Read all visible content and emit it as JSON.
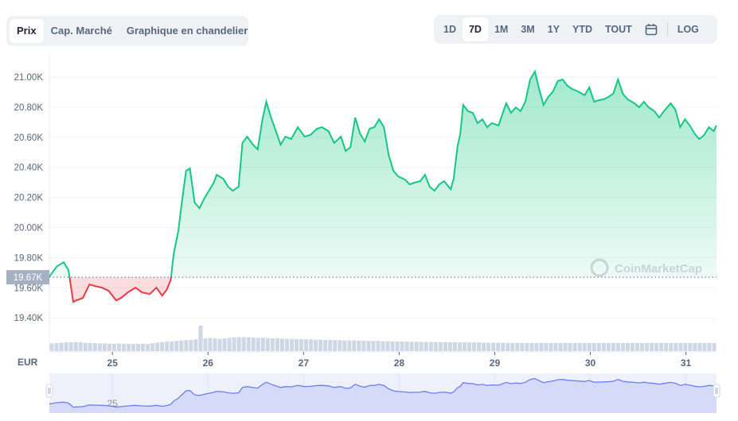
{
  "chart_tabs": [
    {
      "label": "Prix",
      "active": true
    },
    {
      "label": "Cap. Marché",
      "active": false
    },
    {
      "label": "Graphique en chandelier",
      "active": false
    }
  ],
  "range_tabs": [
    {
      "label": "1D",
      "active": false
    },
    {
      "label": "7D",
      "active": true
    },
    {
      "label": "1M",
      "active": false
    },
    {
      "label": "3M",
      "active": false
    },
    {
      "label": "1Y",
      "active": false
    },
    {
      "label": "YTD",
      "active": false
    },
    {
      "label": "TOUT",
      "active": false
    }
  ],
  "calendar_icon": "calendar-icon",
  "log_label": "LOG",
  "watermark": "CoinMarketCap",
  "colors": {
    "up": "#16c784",
    "down": "#ea3943",
    "nav": "#6a7ff0"
  },
  "chart_data": {
    "type": "line",
    "currency_label": "EUR",
    "baseline": 19670,
    "baseline_label": "19.67K",
    "ylim": [
      19250,
      21100
    ],
    "yticks": [
      {
        "v": 19400,
        "label": "19.40K"
      },
      {
        "v": 19600,
        "label": "19.60K"
      },
      {
        "v": 19800,
        "label": "19.80K"
      },
      {
        "v": 20000,
        "label": "20.00K"
      },
      {
        "v": 20200,
        "label": "20.20K"
      },
      {
        "v": 20400,
        "label": "20.40K"
      },
      {
        "v": 20600,
        "label": "20.60K"
      },
      {
        "v": 20800,
        "label": "20.80K"
      },
      {
        "v": 21000,
        "label": "21.00K"
      }
    ],
    "xlim": [
      24.34,
      31.32
    ],
    "xticks": [
      {
        "v": 25,
        "label": "25"
      },
      {
        "v": 26,
        "label": "26"
      },
      {
        "v": 27,
        "label": "27"
      },
      {
        "v": 28,
        "label": "28"
      },
      {
        "v": 29,
        "label": "29"
      },
      {
        "v": 30,
        "label": "30"
      },
      {
        "v": 31,
        "label": "31"
      }
    ],
    "points": [
      [
        24.34,
        19675
      ],
      [
        24.42,
        19743
      ],
      [
        24.49,
        19770
      ],
      [
        24.54,
        19717
      ],
      [
        24.59,
        19506
      ],
      [
        24.62,
        19516
      ],
      [
        24.69,
        19532
      ],
      [
        24.76,
        19622
      ],
      [
        24.82,
        19611
      ],
      [
        24.89,
        19601
      ],
      [
        24.96,
        19580
      ],
      [
        25.04,
        19516
      ],
      [
        25.09,
        19532
      ],
      [
        25.16,
        19569
      ],
      [
        25.24,
        19601
      ],
      [
        25.31,
        19569
      ],
      [
        25.39,
        19559
      ],
      [
        25.46,
        19601
      ],
      [
        25.52,
        19548
      ],
      [
        25.57,
        19590
      ],
      [
        25.61,
        19654
      ],
      [
        25.64,
        19823
      ],
      [
        25.69,
        19981
      ],
      [
        25.72,
        20139
      ],
      [
        25.77,
        20377
      ],
      [
        25.81,
        20393
      ],
      [
        25.86,
        20166
      ],
      [
        25.91,
        20129
      ],
      [
        25.96,
        20192
      ],
      [
        26.01,
        20245
      ],
      [
        26.06,
        20298
      ],
      [
        26.09,
        20351
      ],
      [
        26.16,
        20324
      ],
      [
        26.21,
        20271
      ],
      [
        26.26,
        20245
      ],
      [
        26.32,
        20271
      ],
      [
        26.36,
        20562
      ],
      [
        26.41,
        20604
      ],
      [
        26.47,
        20551
      ],
      [
        26.52,
        20520
      ],
      [
        26.57,
        20720
      ],
      [
        26.61,
        20836
      ],
      [
        26.66,
        20731
      ],
      [
        26.71,
        20641
      ],
      [
        26.76,
        20551
      ],
      [
        26.81,
        20604
      ],
      [
        26.87,
        20588
      ],
      [
        26.94,
        20667
      ],
      [
        27.01,
        20604
      ],
      [
        27.07,
        20615
      ],
      [
        27.14,
        20657
      ],
      [
        27.19,
        20667
      ],
      [
        27.26,
        20641
      ],
      [
        27.32,
        20562
      ],
      [
        27.39,
        20604
      ],
      [
        27.44,
        20509
      ],
      [
        27.49,
        20535
      ],
      [
        27.54,
        20731
      ],
      [
        27.59,
        20625
      ],
      [
        27.64,
        20572
      ],
      [
        27.69,
        20657
      ],
      [
        27.74,
        20667
      ],
      [
        27.79,
        20720
      ],
      [
        27.84,
        20667
      ],
      [
        27.89,
        20483
      ],
      [
        27.94,
        20377
      ],
      [
        27.99,
        20340
      ],
      [
        28.06,
        20319
      ],
      [
        28.11,
        20287
      ],
      [
        28.16,
        20298
      ],
      [
        28.22,
        20308
      ],
      [
        28.27,
        20351
      ],
      [
        28.32,
        20271
      ],
      [
        28.37,
        20245
      ],
      [
        28.42,
        20287
      ],
      [
        28.47,
        20308
      ],
      [
        28.54,
        20255
      ],
      [
        28.57,
        20324
      ],
      [
        28.61,
        20535
      ],
      [
        28.64,
        20625
      ],
      [
        28.67,
        20815
      ],
      [
        28.72,
        20773
      ],
      [
        28.77,
        20762
      ],
      [
        28.82,
        20694
      ],
      [
        28.87,
        20720
      ],
      [
        28.92,
        20667
      ],
      [
        28.97,
        20694
      ],
      [
        29.04,
        20678
      ],
      [
        29.09,
        20773
      ],
      [
        29.12,
        20826
      ],
      [
        29.17,
        20762
      ],
      [
        29.22,
        20799
      ],
      [
        29.27,
        20773
      ],
      [
        29.32,
        20836
      ],
      [
        29.37,
        20984
      ],
      [
        29.42,
        21037
      ],
      [
        29.46,
        20931
      ],
      [
        29.51,
        20815
      ],
      [
        29.56,
        20868
      ],
      [
        29.61,
        20905
      ],
      [
        29.66,
        20974
      ],
      [
        29.71,
        20984
      ],
      [
        29.76,
        20942
      ],
      [
        29.81,
        20921
      ],
      [
        29.87,
        20905
      ],
      [
        29.94,
        20879
      ],
      [
        29.99,
        20931
      ],
      [
        30.04,
        20836
      ],
      [
        30.09,
        20847
      ],
      [
        30.14,
        20852
      ],
      [
        30.19,
        20868
      ],
      [
        30.24,
        20889
      ],
      [
        30.29,
        20984
      ],
      [
        30.34,
        20889
      ],
      [
        30.39,
        20852
      ],
      [
        30.46,
        20826
      ],
      [
        30.51,
        20799
      ],
      [
        30.56,
        20836
      ],
      [
        30.61,
        20799
      ],
      [
        30.67,
        20773
      ],
      [
        30.72,
        20731
      ],
      [
        30.77,
        20773
      ],
      [
        30.84,
        20826
      ],
      [
        30.89,
        20783
      ],
      [
        30.94,
        20667
      ],
      [
        30.99,
        20720
      ],
      [
        31.04,
        20678
      ],
      [
        31.09,
        20625
      ],
      [
        31.14,
        20588
      ],
      [
        31.19,
        20615
      ],
      [
        31.24,
        20667
      ],
      [
        31.29,
        20641
      ],
      [
        31.32,
        20678
      ]
    ],
    "volume_relative": [
      0.3,
      0.32,
      0.33,
      0.35,
      0.35,
      0.36,
      0.35,
      0.33,
      0.32,
      0.31,
      0.3,
      0.3,
      0.29,
      0.29,
      0.3,
      0.29,
      0.28,
      0.28,
      0.28,
      0.29,
      0.28,
      0.3,
      0.33,
      0.36,
      0.38,
      0.38,
      0.4,
      0.42,
      0.43,
      0.44,
      0.46,
      1.0,
      0.5,
      0.52,
      0.5,
      0.48,
      0.5,
      0.52,
      0.54,
      0.55,
      0.55,
      0.54,
      0.53,
      0.52,
      0.52,
      0.51,
      0.5,
      0.5,
      0.49,
      0.48,
      0.48,
      0.47,
      0.47,
      0.46,
      0.46,
      0.45,
      0.45,
      0.44,
      0.44,
      0.43,
      0.43,
      0.42,
      0.42,
      0.42,
      0.41,
      0.41,
      0.4,
      0.4,
      0.4,
      0.39,
      0.39,
      0.38,
      0.38,
      0.38,
      0.37,
      0.37,
      0.37,
      0.36,
      0.36,
      0.36,
      0.36,
      0.35,
      0.35,
      0.35,
      0.35,
      0.34,
      0.34,
      0.34,
      0.34,
      0.34,
      0.33,
      0.33,
      0.33,
      0.33,
      0.33,
      0.32,
      0.32,
      0.32,
      0.32,
      0.32,
      0.32,
      0.32,
      0.32,
      0.32,
      0.32,
      0.32,
      0.32,
      0.32,
      0.32,
      0.32,
      0.32,
      0.32,
      0.32,
      0.32,
      0.32,
      0.32,
      0.32,
      0.32,
      0.32,
      0.32,
      0.32,
      0.32,
      0.32,
      0.32,
      0.32,
      0.32,
      0.32,
      0.32,
      0.32,
      0.32,
      0.32,
      0.32,
      0.32,
      0.32,
      0.32,
      0.32,
      0.32,
      0.32,
      0.32
    ]
  }
}
